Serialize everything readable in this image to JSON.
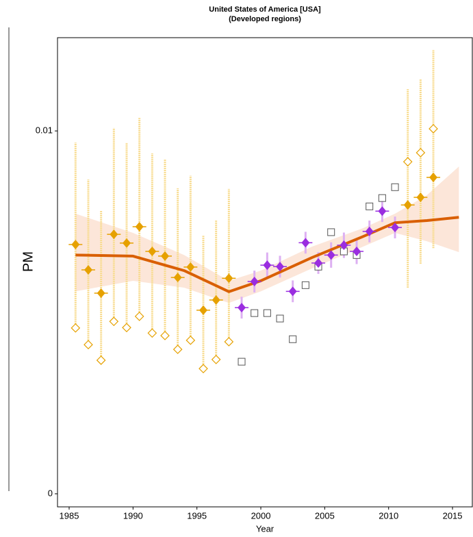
{
  "chart_data": {
    "type": "scatter",
    "title": "United States of America [USA]",
    "subtitle": "(Developed regions)",
    "xlabel": "Year",
    "ylabel": "PM",
    "xlim": [
      1984.09,
      2016.55
    ],
    "ylim": [
      -0.00036,
      0.01257
    ],
    "xticks": [
      1985,
      1990,
      1995,
      2000,
      2005,
      2010,
      2015
    ],
    "yticks": [
      0,
      0.01
    ],
    "band": {
      "color": "#fbe0cf",
      "x": [
        1985.5,
        1990,
        1994,
        1997.5,
        2000,
        2004,
        2008,
        2010.5,
        2013,
        2015.5
      ],
      "lower": [
        0.00558,
        0.00587,
        0.00568,
        0.00526,
        0.00558,
        0.00621,
        0.00681,
        0.00719,
        0.00696,
        0.00666
      ],
      "upper": [
        0.00772,
        0.00719,
        0.00658,
        0.00587,
        0.00615,
        0.00681,
        0.00732,
        0.00772,
        0.00823,
        0.00902
      ]
    },
    "line": {
      "color": "#d95f02",
      "x": [
        1985.5,
        1990,
        1994,
        1997.5,
        2000,
        2004,
        2008,
        2010.5,
        2013,
        2015.5
      ],
      "values": [
        0.00658,
        0.00655,
        0.00615,
        0.00557,
        0.00587,
        0.00651,
        0.00709,
        0.00747,
        0.00753,
        0.00762
      ]
    },
    "series": [
      {
        "marker": "open-square",
        "color": "#555555",
        "x": [
          1998.5,
          1999.5,
          2000.5,
          2001.5,
          2002.5,
          2003.5,
          2004.5,
          2005.5,
          2006.5,
          2007.5,
          2008.5,
          2009.5,
          2010.5
        ],
        "values": [
          0.00364,
          0.00498,
          0.00498,
          0.00483,
          0.00426,
          0.00575,
          0.00626,
          0.00721,
          0.00668,
          0.00658,
          0.00792,
          0.00815,
          0.00845
        ]
      },
      {
        "marker": "open-diamond",
        "color": "#e6a100",
        "x": [
          1985.5,
          1986.5,
          1987.5,
          1988.5,
          1989.5,
          1990.5,
          1991.5,
          1992.5,
          1993.5,
          1994.5,
          1995.5,
          1996.5,
          1997.5,
          2011.5,
          2012.5,
          2013.5
        ],
        "values": [
          0.00457,
          0.00411,
          0.00368,
          0.00475,
          0.00458,
          0.00489,
          0.00443,
          0.00436,
          0.00398,
          0.00423,
          0.00345,
          0.0037,
          0.00419,
          0.00915,
          0.0094,
          0.01006
        ]
      },
      {
        "marker": "diamond",
        "color": "#e6a100",
        "errcolor": "#f8dc90",
        "x": [
          1985.5,
          1986.5,
          1987.5,
          1988.5,
          1989.5,
          1990.5,
          1991.5,
          1992.5,
          1993.5,
          1994.5,
          1995.5,
          1996.5,
          1997.5,
          2011.5,
          2012.5,
          2013.5
        ],
        "values": [
          0.00687,
          0.00617,
          0.00553,
          0.00715,
          0.00691,
          0.00736,
          0.00668,
          0.00655,
          0.00596,
          0.00625,
          0.00506,
          0.00534,
          0.00594,
          0.00796,
          0.00817,
          0.00872
        ],
        "lower": [
          0.00457,
          0.00411,
          0.00368,
          0.00475,
          0.00458,
          0.00489,
          0.00443,
          0.00436,
          0.00398,
          0.00423,
          0.00345,
          0.0037,
          0.00419,
          0.00568,
          0.00634,
          0.00677
        ],
        "upper": [
          0.00968,
          0.00866,
          0.00781,
          0.01008,
          0.00968,
          0.01036,
          0.00938,
          0.00921,
          0.00842,
          0.00877,
          0.00711,
          0.00753,
          0.0084,
          0.01115,
          0.01143,
          0.01223
        ]
      },
      {
        "marker": "diamond",
        "color": "#9a2de0",
        "errcolor": "#ddb0f2",
        "x": [
          1998.5,
          1999.5,
          2000.5,
          2001.5,
          2002.5,
          2003.5,
          2004.5,
          2005.5,
          2006.5,
          2007.5,
          2008.5,
          2009.5,
          2010.5
        ],
        "values": [
          0.00513,
          0.00585,
          0.0063,
          0.00626,
          0.00558,
          0.00692,
          0.00636,
          0.00658,
          0.00685,
          0.00668,
          0.00723,
          0.00779,
          0.00734
        ],
        "lower": [
          0.00483,
          0.00555,
          0.00595,
          0.00596,
          0.00528,
          0.00662,
          0.00606,
          0.00623,
          0.0065,
          0.00633,
          0.00693,
          0.00749,
          0.00704
        ],
        "upper": [
          0.00543,
          0.00615,
          0.00665,
          0.00656,
          0.00588,
          0.00722,
          0.00666,
          0.00693,
          0.0072,
          0.00703,
          0.00753,
          0.00809,
          0.00764
        ]
      }
    ]
  }
}
